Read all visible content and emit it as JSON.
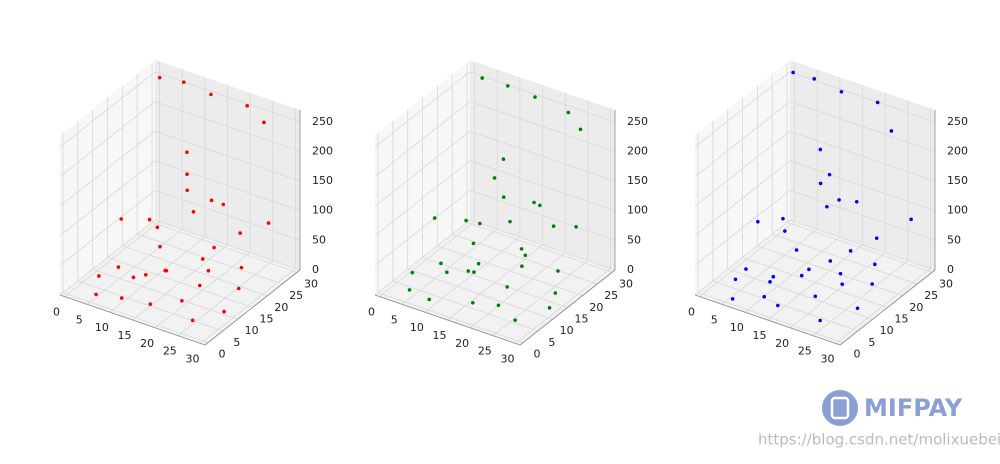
{
  "chart_data": [
    {
      "type": "scatter3d",
      "color": "#ff0000",
      "x": [
        5,
        10,
        15,
        20,
        25,
        28,
        12,
        18,
        22,
        8,
        3,
        26,
        14,
        20,
        6,
        5,
        10,
        12,
        15,
        18,
        20,
        8,
        25,
        14,
        22,
        10,
        16,
        4,
        28,
        6,
        2,
        6,
        12,
        20,
        25
      ],
      "y": [
        2,
        3,
        5,
        8,
        4,
        10,
        15,
        20,
        25,
        10,
        6,
        18,
        28,
        14,
        22,
        20,
        15,
        22,
        10,
        25,
        18,
        28,
        20,
        5,
        12,
        25,
        18,
        12,
        25,
        8,
        28,
        30,
        30,
        30,
        28
      ],
      "z": [
        5,
        8,
        3,
        10,
        6,
        5,
        12,
        8,
        4,
        10,
        15,
        7,
        5,
        12,
        9,
        60,
        80,
        120,
        40,
        100,
        140,
        150,
        90,
        50,
        70,
        130,
        110,
        90,
        95,
        30,
        260,
        255,
        250,
        252,
        245
      ],
      "xlim": [
        -1,
        31
      ],
      "ylim": [
        -1,
        31
      ],
      "zlim": [
        0,
        270
      ],
      "xticks": [
        0,
        5,
        10,
        15,
        20,
        25,
        30
      ],
      "yticks": [
        0,
        5,
        10,
        15,
        20,
        25,
        30
      ],
      "zticks": [
        0,
        50,
        100,
        150,
        200,
        250
      ]
    },
    {
      "type": "scatter3d",
      "color": "#008000",
      "x": [
        4,
        9,
        16,
        21,
        26,
        29,
        11,
        17,
        23,
        7,
        2,
        27,
        13,
        19,
        5,
        6,
        11,
        13,
        14,
        19,
        21,
        9,
        24,
        15,
        23,
        9,
        17,
        3,
        27,
        7,
        3,
        8,
        14,
        22,
        26
      ],
      "y": [
        3,
        2,
        6,
        7,
        5,
        12,
        14,
        21,
        24,
        11,
        7,
        17,
        27,
        13,
        23,
        19,
        16,
        21,
        11,
        24,
        19,
        27,
        21,
        6,
        13,
        24,
        17,
        13,
        24,
        9,
        29,
        30,
        30,
        29,
        27
      ],
      "z": [
        6,
        7,
        4,
        9,
        5,
        6,
        11,
        9,
        5,
        12,
        14,
        6,
        4,
        11,
        8,
        65,
        85,
        115,
        45,
        105,
        135,
        145,
        95,
        55,
        75,
        125,
        100,
        85,
        90,
        35,
        258,
        254,
        251,
        250,
        240
      ],
      "xlim": [
        -1,
        31
      ],
      "ylim": [
        -1,
        31
      ],
      "zlim": [
        0,
        270
      ],
      "xticks": [
        0,
        5,
        10,
        15,
        20,
        25,
        30
      ],
      "yticks": [
        0,
        5,
        10,
        15,
        20,
        25,
        30
      ],
      "zticks": [
        0,
        50,
        100,
        150,
        200,
        250
      ]
    },
    {
      "type": "scatter3d",
      "color": "#0000ff",
      "x": [
        6,
        11,
        14,
        19,
        24,
        27,
        13,
        18,
        21,
        9,
        4,
        25,
        15,
        21,
        7,
        4,
        9,
        11,
        16,
        17,
        19,
        7,
        26,
        13,
        21,
        11,
        15,
        5,
        29,
        5,
        1,
        5,
        11,
        19,
        24
      ],
      "y": [
        1,
        4,
        4,
        9,
        3,
        11,
        16,
        19,
        26,
        9,
        5,
        19,
        27,
        15,
        21,
        21,
        14,
        23,
        9,
        26,
        17,
        29,
        19,
        4,
        11,
        26,
        19,
        11,
        26,
        7,
        29,
        30,
        30,
        30,
        27
      ],
      "z": [
        4,
        9,
        2,
        11,
        7,
        4,
        13,
        7,
        3,
        9,
        16,
        8,
        6,
        13,
        10,
        55,
        75,
        125,
        38,
        98,
        142,
        148,
        88,
        48,
        68,
        128,
        112,
        92,
        100,
        28,
        262,
        258,
        252,
        255,
        232
      ],
      "xlim": [
        -1,
        31
      ],
      "ylim": [
        -1,
        31
      ],
      "zlim": [
        0,
        270
      ],
      "xticks": [
        0,
        5,
        10,
        15,
        20,
        25,
        30
      ],
      "yticks": [
        0,
        5,
        10,
        15,
        20,
        25,
        30
      ],
      "zticks": [
        0,
        50,
        100,
        150,
        200,
        250
      ]
    }
  ],
  "watermark": {
    "logo_text": "MIFPAY",
    "url": "https://blog.csdn.net/molixuebeibi"
  }
}
